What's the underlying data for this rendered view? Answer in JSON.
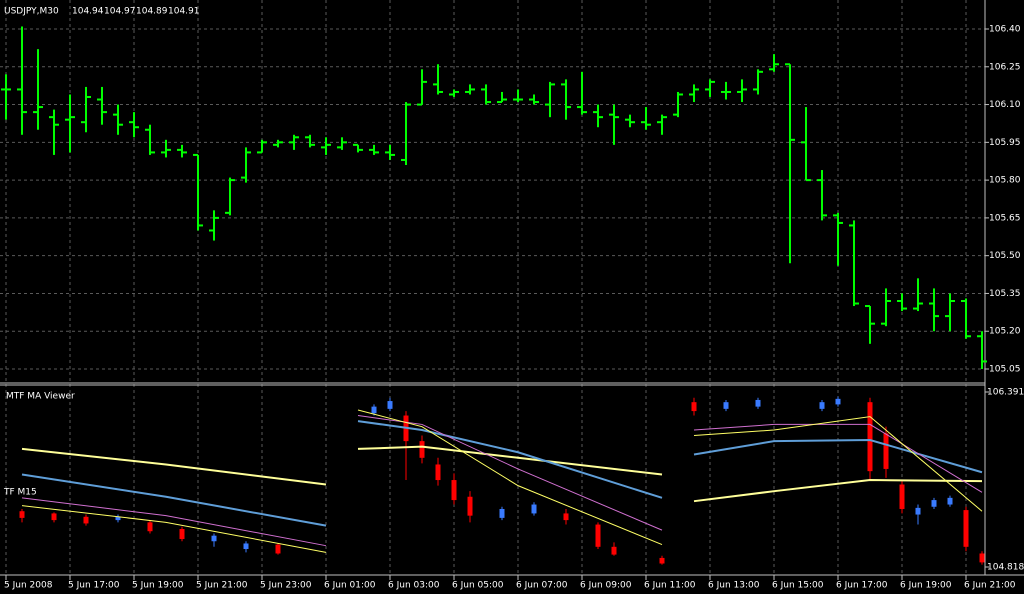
{
  "chart_data": [
    {
      "type": "ohlc",
      "title": "USDJPY,M30",
      "last_bar": [
        104.94,
        104.97,
        104.89,
        104.91
      ],
      "color": "#00ff00",
      "categories": [
        "5 Jun 2008",
        null,
        null,
        null,
        "5 Jun 17:00",
        null,
        null,
        null,
        "5 Jun 19:00",
        null,
        null,
        null,
        "5 Jun 21:00",
        null,
        null,
        null,
        "5 Jun 23:00",
        null,
        null,
        null,
        "6 Jun 01:00",
        null,
        null,
        null,
        "6 Jun 03:00",
        null,
        null,
        null,
        "6 Jun 05:00",
        null,
        null,
        null,
        "6 Jun 07:00",
        null,
        null,
        null,
        "6 Jun 09:00",
        null,
        null,
        null,
        "6 Jun 11:00",
        null,
        null,
        null,
        "6 Jun 13:00",
        null,
        null,
        null,
        "6 Jun 15:00",
        null,
        null,
        null,
        "6 Jun 17:00",
        null,
        null,
        null,
        "6 Jun 19:00",
        null,
        null,
        null,
        "6 Jun 21:00",
        null
      ],
      "open": [
        106.16,
        106.16,
        106.07,
        106.05,
        106.04,
        106.03,
        106.12,
        106.06,
        106.03,
        106.0,
        105.91,
        105.92,
        105.9,
        105.6,
        105.67,
        105.81,
        105.91,
        105.94,
        105.95,
        105.97,
        105.93,
        105.93,
        105.94,
        105.92,
        105.91,
        105.88,
        106.1,
        106.18,
        106.14,
        106.15,
        106.16,
        106.11,
        106.12,
        106.12,
        106.1,
        106.18,
        106.09,
        106.07,
        106.06,
        106.04,
        106.03,
        106.03,
        106.06,
        106.14,
        106.16,
        106.15,
        106.15,
        106.16,
        106.24,
        106.26,
        105.95,
        105.8,
        105.66,
        105.62,
        105.3,
        105.23,
        105.32,
        105.29,
        105.31,
        105.26,
        105.32,
        105.18
      ],
      "high": [
        106.22,
        106.41,
        106.32,
        106.08,
        106.14,
        106.17,
        106.17,
        106.1,
        106.07,
        106.02,
        105.96,
        105.94,
        105.9,
        105.68,
        105.81,
        105.93,
        105.96,
        105.96,
        105.98,
        105.98,
        105.97,
        105.97,
        105.94,
        105.94,
        105.94,
        106.11,
        106.24,
        106.26,
        106.16,
        106.18,
        106.18,
        106.15,
        106.16,
        106.14,
        106.19,
        106.2,
        106.23,
        106.1,
        106.1,
        106.06,
        106.09,
        106.06,
        106.15,
        106.18,
        106.2,
        106.19,
        106.2,
        106.24,
        106.3,
        106.26,
        106.09,
        105.84,
        105.67,
        105.64,
        105.3,
        105.37,
        105.35,
        105.41,
        105.37,
        105.35,
        105.33,
        105.2
      ],
      "low": [
        106.04,
        105.98,
        106.0,
        105.9,
        105.91,
        105.99,
        106.02,
        105.98,
        105.97,
        105.9,
        105.89,
        105.89,
        105.6,
        105.56,
        105.66,
        105.79,
        105.91,
        105.93,
        105.92,
        105.93,
        105.9,
        105.92,
        105.91,
        105.9,
        105.88,
        105.86,
        106.1,
        106.14,
        106.13,
        106.14,
        106.1,
        106.11,
        106.11,
        106.1,
        106.05,
        106.04,
        106.06,
        106.01,
        105.94,
        106.01,
        106.0,
        105.98,
        106.05,
        106.11,
        106.13,
        106.12,
        106.11,
        106.14,
        106.23,
        105.47,
        105.8,
        105.64,
        105.46,
        105.3,
        105.15,
        105.22,
        105.28,
        105.28,
        105.2,
        105.2,
        105.17,
        105.05
      ],
      "close": [
        106.16,
        106.07,
        106.09,
        106.02,
        106.05,
        106.13,
        106.07,
        106.02,
        106.01,
        105.91,
        105.92,
        105.91,
        105.62,
        105.65,
        105.8,
        105.91,
        105.95,
        105.95,
        105.97,
        105.94,
        105.94,
        105.95,
        105.92,
        105.91,
        105.9,
        106.1,
        106.19,
        106.15,
        106.15,
        106.16,
        106.11,
        106.12,
        106.12,
        106.11,
        106.18,
        106.09,
        106.07,
        106.05,
        106.05,
        106.03,
        106.02,
        106.05,
        106.14,
        106.16,
        106.19,
        106.15,
        106.16,
        106.23,
        106.26,
        105.96,
        105.8,
        105.66,
        105.63,
        105.31,
        105.23,
        105.32,
        105.29,
        105.31,
        105.26,
        105.32,
        105.18,
        105.08
      ],
      "ylim": [
        105.05,
        106.4
      ],
      "yticks": [
        {
          "value": 106.4,
          "label": "106.40"
        },
        106.25,
        {
          "value": 106.1,
          "label": "106.10"
        },
        105.95,
        {
          "value": 105.8,
          "label": "105.80"
        },
        105.65,
        {
          "value": 105.5,
          "label": "105.50"
        },
        105.35,
        {
          "value": 105.2,
          "label": "105.20"
        },
        105.05
      ],
      "grid": true
    },
    {
      "type": "ma-viewer",
      "title": "MTF MA Viewer",
      "label": "TF M15",
      "x": [
        1,
        10,
        20,
        21,
        22,
        26,
        32,
        41,
        42,
        43,
        48,
        54,
        61
      ],
      "series": [
        {
          "color": "#ffff99",
          "width": 2,
          "values": [
            105.88,
            105.74,
            105.56,
            null,
            105.88,
            105.9,
            105.8,
            105.65,
            null,
            105.41,
            105.5,
            105.6,
            105.59
          ]
        },
        {
          "color": "#5f9ed8",
          "width": 2,
          "values": [
            105.65,
            105.45,
            105.19,
            null,
            106.13,
            106.05,
            105.85,
            105.44,
            null,
            105.83,
            105.95,
            105.96,
            105.67
          ]
        },
        {
          "color": "#d070d0",
          "width": 1,
          "values": [
            105.44,
            105.28,
            105.01,
            null,
            106.18,
            106.1,
            105.7,
            105.15,
            null,
            106.05,
            106.1,
            106.1,
            105.49
          ]
        },
        {
          "color": "#ffff66",
          "width": 1,
          "values": [
            105.37,
            105.22,
            104.95,
            null,
            106.23,
            106.08,
            105.55,
            105.02,
            null,
            106.0,
            106.05,
            106.17,
            105.32
          ]
        }
      ],
      "up_color": "#3a7bff",
      "down_color": "#ff0000",
      "candles": [
        {
          "x": 1,
          "open": 105.32,
          "high": 105.34,
          "low": 105.22,
          "close": 105.26
        },
        {
          "x": 3,
          "open": 105.3,
          "high": 105.31,
          "low": 105.22,
          "close": 105.24
        },
        {
          "x": 5,
          "open": 105.27,
          "high": 105.29,
          "low": 105.19,
          "close": 105.21
        },
        {
          "x": 7,
          "open": 105.24,
          "high": 105.29,
          "low": 105.22,
          "close": 105.27
        },
        {
          "x": 9,
          "open": 105.22,
          "high": 105.24,
          "low": 105.12,
          "close": 105.14
        },
        {
          "x": 11,
          "open": 105.16,
          "high": 105.18,
          "low": 105.05,
          "close": 105.07
        },
        {
          "x": 13,
          "open": 105.05,
          "high": 105.12,
          "low": 105.0,
          "close": 105.1
        },
        {
          "x": 15,
          "open": 104.98,
          "high": 105.05,
          "low": 104.95,
          "close": 105.03
        },
        {
          "x": 17,
          "open": 105.02,
          "high": 105.03,
          "low": 104.93,
          "close": 104.94
        },
        {
          "x": 23,
          "open": 106.2,
          "high": 106.28,
          "low": 106.18,
          "close": 106.26
        },
        {
          "x": 24,
          "open": 106.24,
          "high": 106.34,
          "low": 106.22,
          "close": 106.31
        },
        {
          "x": 25,
          "open": 106.18,
          "high": 106.22,
          "low": 105.6,
          "close": 105.95
        },
        {
          "x": 26,
          "open": 105.95,
          "high": 106.0,
          "low": 105.75,
          "close": 105.8
        },
        {
          "x": 27,
          "open": 105.74,
          "high": 105.8,
          "low": 105.55,
          "close": 105.6
        },
        {
          "x": 28,
          "open": 105.6,
          "high": 105.66,
          "low": 105.38,
          "close": 105.42
        },
        {
          "x": 29,
          "open": 105.45,
          "high": 105.5,
          "low": 105.22,
          "close": 105.28
        },
        {
          "x": 31,
          "open": 105.26,
          "high": 105.36,
          "low": 105.24,
          "close": 105.34
        },
        {
          "x": 33,
          "open": 105.3,
          "high": 105.4,
          "low": 105.28,
          "close": 105.38
        },
        {
          "x": 35,
          "open": 105.3,
          "high": 105.34,
          "low": 105.2,
          "close": 105.24
        },
        {
          "x": 37,
          "open": 105.2,
          "high": 105.22,
          "low": 104.98,
          "close": 105.0
        },
        {
          "x": 38,
          "open": 105.0,
          "high": 105.04,
          "low": 104.92,
          "close": 104.93
        },
        {
          "x": 41,
          "open": 104.9,
          "high": 104.92,
          "low": 104.84,
          "close": 104.85
        },
        {
          "x": 43,
          "open": 106.3,
          "high": 106.34,
          "low": 106.18,
          "close": 106.22
        },
        {
          "x": 45,
          "open": 106.24,
          "high": 106.32,
          "low": 106.22,
          "close": 106.3
        },
        {
          "x": 47,
          "open": 106.26,
          "high": 106.34,
          "low": 106.24,
          "close": 106.32
        },
        {
          "x": 51,
          "open": 106.24,
          "high": 106.32,
          "low": 106.22,
          "close": 106.3
        },
        {
          "x": 52,
          "open": 106.28,
          "high": 106.35,
          "low": 106.26,
          "close": 106.33
        },
        {
          "x": 54,
          "open": 106.3,
          "high": 106.34,
          "low": 105.6,
          "close": 105.68
        },
        {
          "x": 55,
          "open": 106.02,
          "high": 106.08,
          "low": 105.62,
          "close": 105.7
        },
        {
          "x": 56,
          "open": 105.56,
          "high": 105.6,
          "low": 105.3,
          "close": 105.34
        },
        {
          "x": 57,
          "open": 105.29,
          "high": 105.38,
          "low": 105.2,
          "close": 105.35
        },
        {
          "x": 58,
          "open": 105.36,
          "high": 105.44,
          "low": 105.34,
          "close": 105.42
        },
        {
          "x": 59,
          "open": 105.38,
          "high": 105.46,
          "low": 105.36,
          "close": 105.44
        },
        {
          "x": 60,
          "open": 105.33,
          "high": 105.36,
          "low": 104.96,
          "close": 105.0
        },
        {
          "x": 61,
          "open": 104.94,
          "high": 104.96,
          "low": 104.84,
          "close": 104.86
        }
      ],
      "ylim": [
        104.8185,
        106.3915
      ],
      "yticks": [
        104.8185,
        106.3915
      ]
    }
  ]
}
